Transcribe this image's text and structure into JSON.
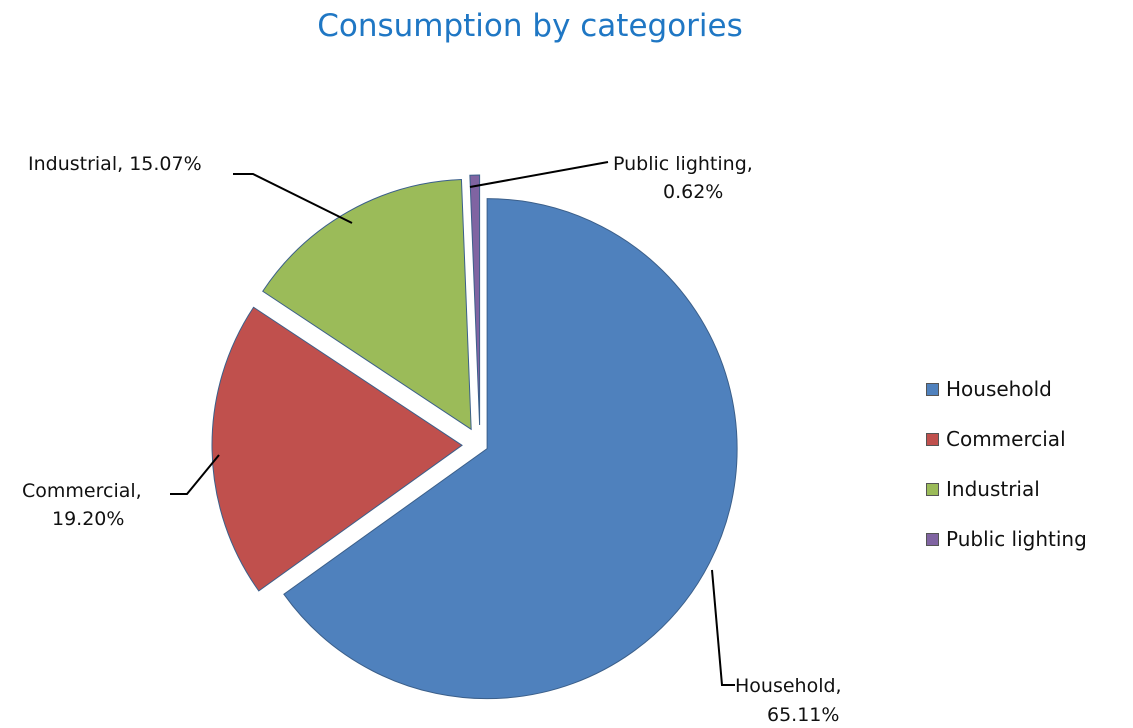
{
  "chart_data": {
    "type": "pie",
    "title": "Consumption by categories",
    "slices": [
      {
        "name": "Household",
        "value": 65.11,
        "color": "#4f81bd",
        "label_line1": "Household,",
        "label_line2": "65.11%"
      },
      {
        "name": "Commercial",
        "value": 19.2,
        "color": "#c0504d",
        "label_line1": "Commercial,",
        "label_line2": "19.20%"
      },
      {
        "name": "Industrial",
        "value": 15.07,
        "color": "#9bbb59",
        "label_line1": "Industrial, 15.07%",
        "label_line2": ""
      },
      {
        "name": "Public lighting",
        "value": 0.62,
        "color": "#8064a2",
        "label_line1": "Public lighting,",
        "label_line2": "0.62%"
      }
    ],
    "legend": {
      "position": "right",
      "items": [
        "Household",
        "Commercial",
        "Industrial",
        "Public lighting"
      ]
    }
  }
}
